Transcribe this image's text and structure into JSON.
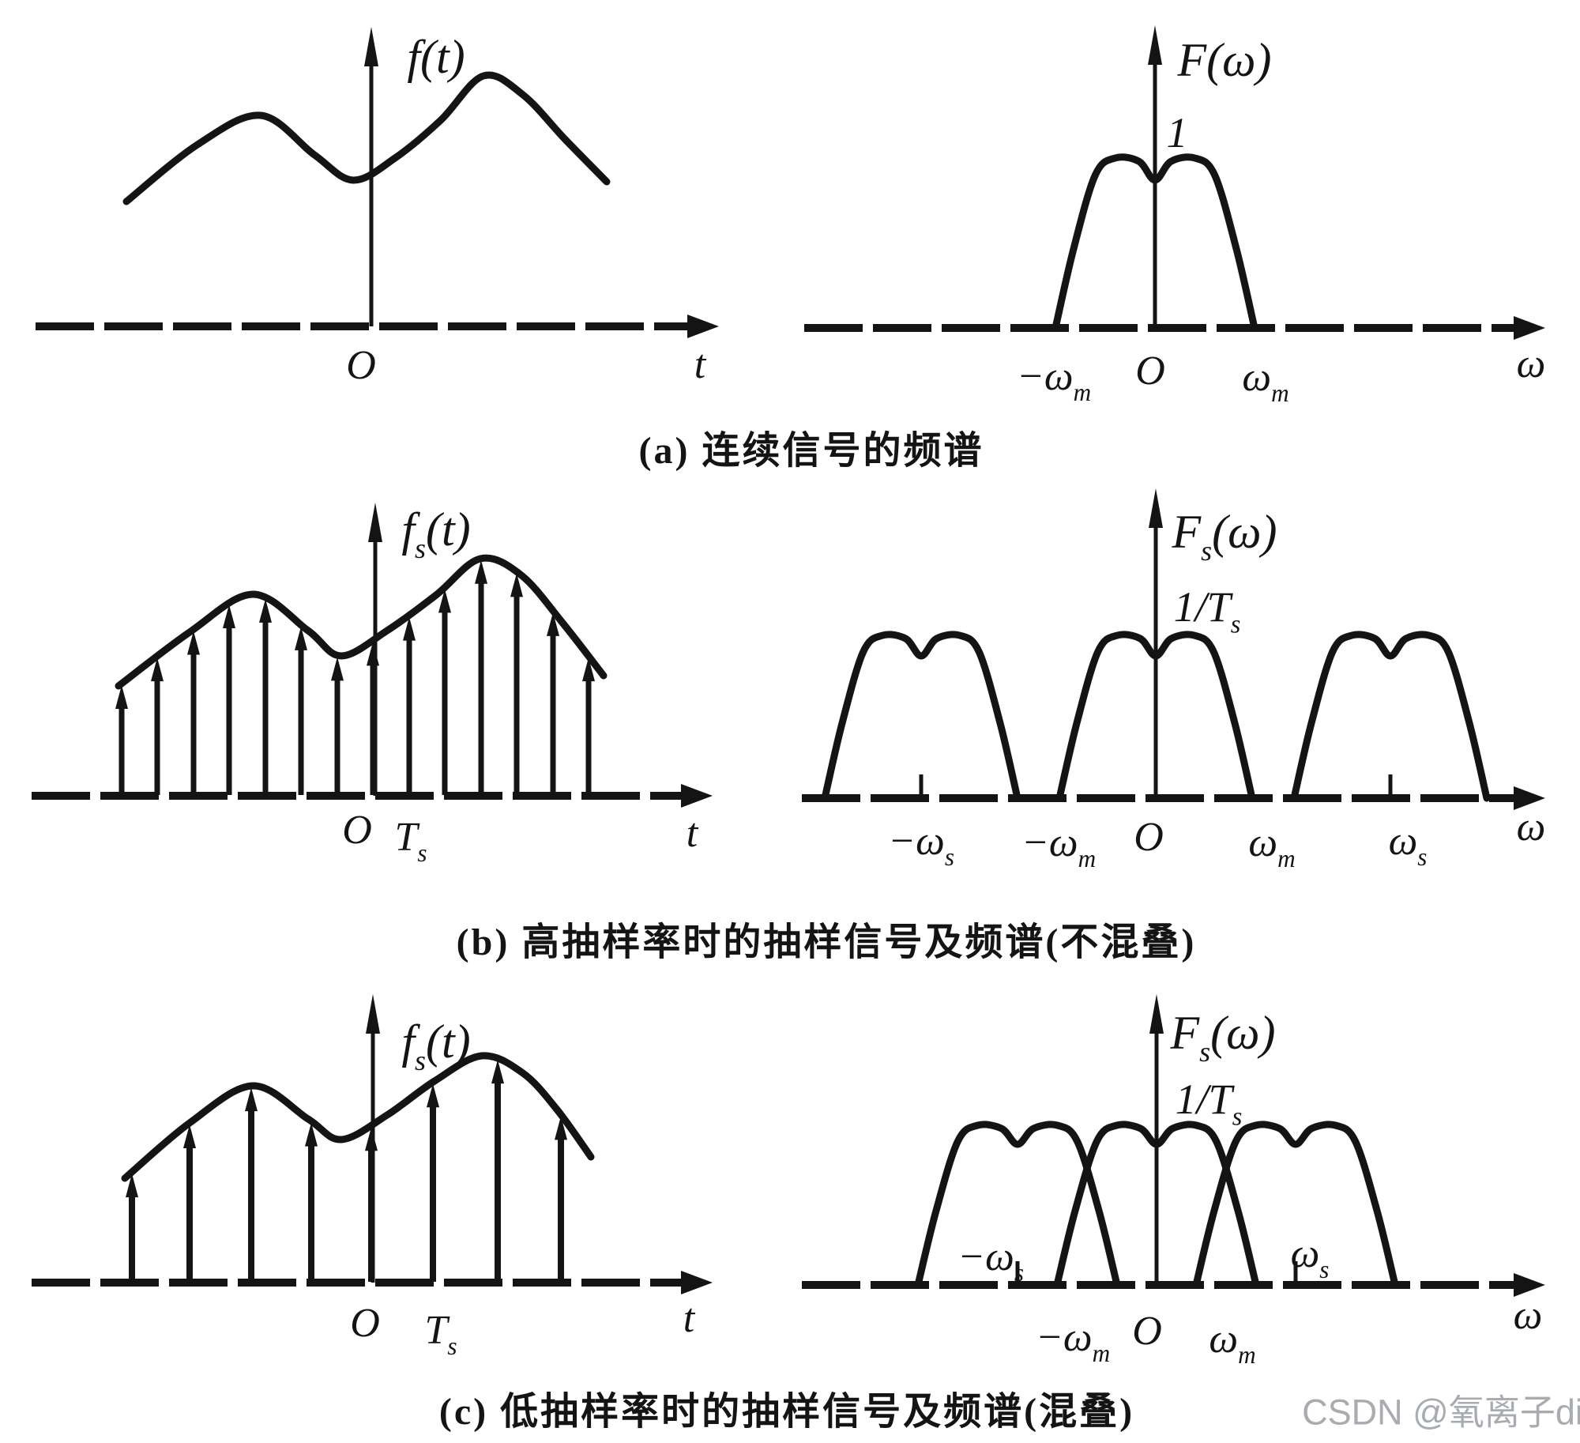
{
  "figure": {
    "captions": {
      "a": "(a) 连续信号的频谱",
      "b": "(b) 高抽样率时的抽样信号及频谱(不混叠)",
      "c": "(c) 低抽样率时的抽样信号及频谱(混叠)"
    },
    "watermark": "CSDN @氧离子di",
    "colors": {
      "ink": "#141414",
      "background": "#ffffff",
      "watermark": "#a8acb1"
    }
  },
  "panels": {
    "a_time": {
      "signal_label": "f(t)",
      "origin_label": "O",
      "x_axis_label": "t"
    },
    "a_freq": {
      "spectrum_label": "F(ω)",
      "amplitude_label": "1",
      "neg_wm": {
        "pre": "−ω",
        "sub": "m"
      },
      "origin_label": "O",
      "wm": {
        "pre": "ω",
        "sub": "m"
      },
      "x_axis_label": "ω"
    },
    "b_time": {
      "signal_label": {
        "pre": "f",
        "sub": "s",
        "post": "(t)"
      },
      "origin_label": "O",
      "ts_label": {
        "pre": "T",
        "sub": "s"
      },
      "x_axis_label": "t"
    },
    "b_freq": {
      "spectrum_label": {
        "pre": "F",
        "sub": "s",
        "post": "(ω)"
      },
      "amplitude_label": {
        "pre": "1/T",
        "sub": "s"
      },
      "neg_ws": {
        "pre": "−ω",
        "sub": "s"
      },
      "neg_wm": {
        "pre": "−ω",
        "sub": "m"
      },
      "origin_label": "O",
      "wm": {
        "pre": "ω",
        "sub": "m"
      },
      "ws": {
        "pre": "ω",
        "sub": "s"
      },
      "x_axis_label": "ω"
    },
    "c_time": {
      "signal_label": {
        "pre": "f",
        "sub": "s",
        "post": "(t)"
      },
      "origin_label": "O",
      "ts_label": {
        "pre": "T",
        "sub": "s"
      },
      "x_axis_label": "t"
    },
    "c_freq": {
      "spectrum_label": {
        "pre": "F",
        "sub": "s",
        "post": "(ω)"
      },
      "amplitude_label": {
        "pre": "1/T",
        "sub": "s"
      },
      "neg_ws": {
        "pre": "−ω",
        "sub": "s"
      },
      "ws": {
        "pre": "ω",
        "sub": "s"
      },
      "neg_wm": {
        "pre": "−ω",
        "sub": "m"
      },
      "origin_label": "O",
      "wm": {
        "pre": "ω",
        "sub": "m"
      },
      "x_axis_label": "ω"
    }
  }
}
